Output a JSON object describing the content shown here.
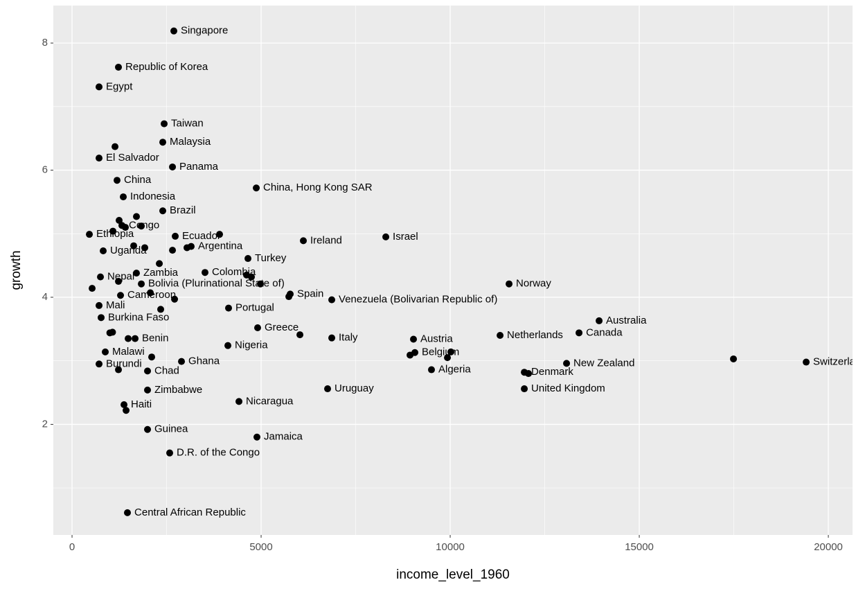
{
  "chart_data": {
    "type": "scatter",
    "x_label": "income_level_1960",
    "y_label": "growth",
    "xlim": [
      -495,
      20640
    ],
    "ylim": [
      0.26,
      8.59
    ],
    "xticks": [
      0,
      5000,
      10000,
      15000,
      20000
    ],
    "yticks": [
      2,
      4,
      6,
      8
    ],
    "xminor": [
      2500,
      7500,
      12500,
      17500
    ],
    "yminor": [
      1,
      3,
      5,
      7
    ],
    "grid": true,
    "color": "#000000",
    "x": [
      2692,
      1227,
      714,
      2436,
      2399,
      1136,
      714,
      2656,
      1190,
      4872,
      1355,
      2399,
      1703,
      1245,
      1319,
      1410,
      1832,
      458,
      1081,
      2729,
      3901,
      6117,
      8297,
      824,
      1630,
      1923,
      2656,
      3150,
      3040,
      4652,
      2308,
      1703,
      3516,
      4615,
      4744,
      751,
      1227,
      1832,
      4982,
      11557,
      531,
      1282,
      2070,
      2711,
      5769,
      5733,
      6868,
      714,
      4139,
      2344,
      769,
      13938,
      4908,
      13407,
      1000,
      1070,
      1484,
      1667,
      6868,
      6026,
      11319,
      9029,
      4121,
      879,
      9066,
      8938,
      10018,
      9927,
      2106,
      2894,
      714,
      13077,
      17491,
      19414,
      1996,
      1227,
      9505,
      11960,
      12070,
      11960,
      6758,
      1996,
      4414,
      1374,
      1429,
      1996,
      4890,
      2582,
      1465
    ],
    "values": [
      8.19,
      7.62,
      7.31,
      6.73,
      6.44,
      6.37,
      6.19,
      6.05,
      5.84,
      5.72,
      5.58,
      5.36,
      5.27,
      5.21,
      5.13,
      5.1,
      5.12,
      4.99,
      5.04,
      4.96,
      4.99,
      4.89,
      4.95,
      4.73,
      4.81,
      4.78,
      4.74,
      4.8,
      4.78,
      4.61,
      4.53,
      4.38,
      4.39,
      4.35,
      4.32,
      4.32,
      4.25,
      4.21,
      4.21,
      4.21,
      4.14,
      4.03,
      4.07,
      3.97,
      4.05,
      4.01,
      3.96,
      3.87,
      3.83,
      3.81,
      3.68,
      3.63,
      3.52,
      3.44,
      3.44,
      3.45,
      3.35,
      3.35,
      3.36,
      3.41,
      3.4,
      3.34,
      3.24,
      3.14,
      3.13,
      3.09,
      3.14,
      3.05,
      3.06,
      2.99,
      2.95,
      2.96,
      3.03,
      2.98,
      2.84,
      2.86,
      2.86,
      2.82,
      2.8,
      2.56,
      2.56,
      2.54,
      2.36,
      2.31,
      2.22,
      1.92,
      1.8,
      1.55,
      0.61
    ],
    "point_labels": [
      "Singapore",
      "Republic of Korea",
      "Egypt",
      "Taiwan",
      "Malaysia",
      null,
      "El Salvador",
      "Panama",
      "China",
      "China, Hong Kong SAR",
      "Indonesia",
      "Brazil",
      null,
      null,
      "Congo",
      null,
      null,
      "Ethiopia",
      null,
      "Ecuador",
      null,
      "Ireland",
      "Israel",
      "Uganda",
      null,
      null,
      null,
      "Argentina",
      null,
      "Turkey",
      null,
      "Zambia",
      "Colombia",
      null,
      null,
      "Nepal",
      null,
      "Bolivia (Plurinational State of)",
      null,
      "Norway",
      null,
      "Cameroon",
      null,
      null,
      "Spain",
      null,
      "Venezuela (Bolivarian Republic of)",
      "Mali",
      "Portugal",
      null,
      "Burkina Faso",
      "Australia",
      "Greece",
      "Canada",
      null,
      null,
      null,
      "Benin",
      "Italy",
      null,
      "Netherlands",
      "Austria",
      "Nigeria",
      "Malawi",
      "Belgium",
      null,
      null,
      null,
      null,
      "Ghana",
      "Burundi",
      "New Zealand",
      null,
      "Switzerland",
      "Chad",
      null,
      "Algeria",
      "Denmark",
      null,
      "United Kingdom",
      "Uruguay",
      "Zimbabwe",
      "Nicaragua",
      "Haiti",
      null,
      "Guinea",
      "Jamaica",
      "D.R. of the Congo",
      "Central African Republic"
    ]
  }
}
